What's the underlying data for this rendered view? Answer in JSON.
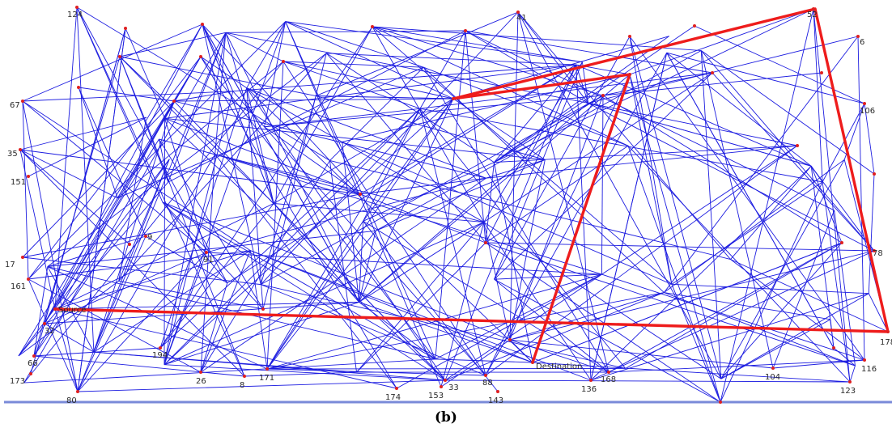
{
  "figure": {
    "caption": "(b)",
    "colors": {
      "edge": "#1c1ce0",
      "route": "#ee1c1c",
      "node": "#e02020",
      "label": "#2a2a2a",
      "baseline": "#7a8ad8"
    }
  },
  "nodes": [
    {
      "id": "124",
      "label": "124"
    },
    {
      "id": "41",
      "label": "41"
    },
    {
      "id": "52",
      "label": "52"
    },
    {
      "id": "6",
      "label": "6"
    },
    {
      "id": "67",
      "label": "67"
    },
    {
      "id": "106",
      "label": "106"
    },
    {
      "id": "35",
      "label": "35"
    },
    {
      "id": "151",
      "label": "151"
    },
    {
      "id": "9",
      "label": "9"
    },
    {
      "id": "91",
      "label": "91"
    },
    {
      "id": "17",
      "label": "17"
    },
    {
      "id": "161",
      "label": "161"
    },
    {
      "id": "32",
      "label": "32"
    },
    {
      "id": "194",
      "label": "194"
    },
    {
      "id": "66",
      "label": "66"
    },
    {
      "id": "173",
      "label": "173"
    },
    {
      "id": "80",
      "label": "80"
    },
    {
      "id": "26",
      "label": "26"
    },
    {
      "id": "8",
      "label": "8"
    },
    {
      "id": "171",
      "label": "171"
    },
    {
      "id": "174",
      "label": "174"
    },
    {
      "id": "153",
      "label": "153"
    },
    {
      "id": "33",
      "label": "33"
    },
    {
      "id": "88",
      "label": "88"
    },
    {
      "id": "143",
      "label": "143"
    },
    {
      "id": "136",
      "label": "136"
    },
    {
      "id": "168",
      "label": "168"
    },
    {
      "id": "104",
      "label": "104"
    },
    {
      "id": "123",
      "label": "123"
    },
    {
      "id": "116",
      "label": "116"
    },
    {
      "id": "78",
      "label": "78"
    },
    {
      "id": "178",
      "label": "178"
    },
    {
      "id": "source",
      "label": "Source"
    },
    {
      "id": "destination",
      "label": "Destination"
    },
    {
      "id": "n_a",
      "label": ""
    },
    {
      "id": "n_b",
      "label": ""
    },
    {
      "id": "n_c",
      "label": ""
    },
    {
      "id": "n_d",
      "label": ""
    },
    {
      "id": "n_e",
      "label": ""
    },
    {
      "id": "n_f",
      "label": ""
    },
    {
      "id": "n_g",
      "label": ""
    },
    {
      "id": "n_h",
      "label": ""
    },
    {
      "id": "n_i",
      "label": ""
    },
    {
      "id": "n_j",
      "label": ""
    },
    {
      "id": "n_k",
      "label": ""
    },
    {
      "id": "n_l",
      "label": ""
    },
    {
      "id": "n_m",
      "label": ""
    },
    {
      "id": "n_n",
      "label": ""
    },
    {
      "id": "n_o",
      "label": ""
    },
    {
      "id": "n_p",
      "label": ""
    },
    {
      "id": "n_q",
      "label": ""
    },
    {
      "id": "n_r",
      "label": ""
    },
    {
      "id": "n_s",
      "label": ""
    },
    {
      "id": "n_t",
      "label": ""
    },
    {
      "id": "n_u",
      "label": ""
    },
    {
      "id": "n_v",
      "label": ""
    },
    {
      "id": "n_w",
      "label": ""
    },
    {
      "id": "n_x",
      "label": ""
    },
    {
      "id": "n_y",
      "label": ""
    },
    {
      "id": "n_z",
      "label": ""
    }
  ],
  "route": [
    "source",
    "178",
    "52",
    "n_r",
    "destination"
  ]
}
